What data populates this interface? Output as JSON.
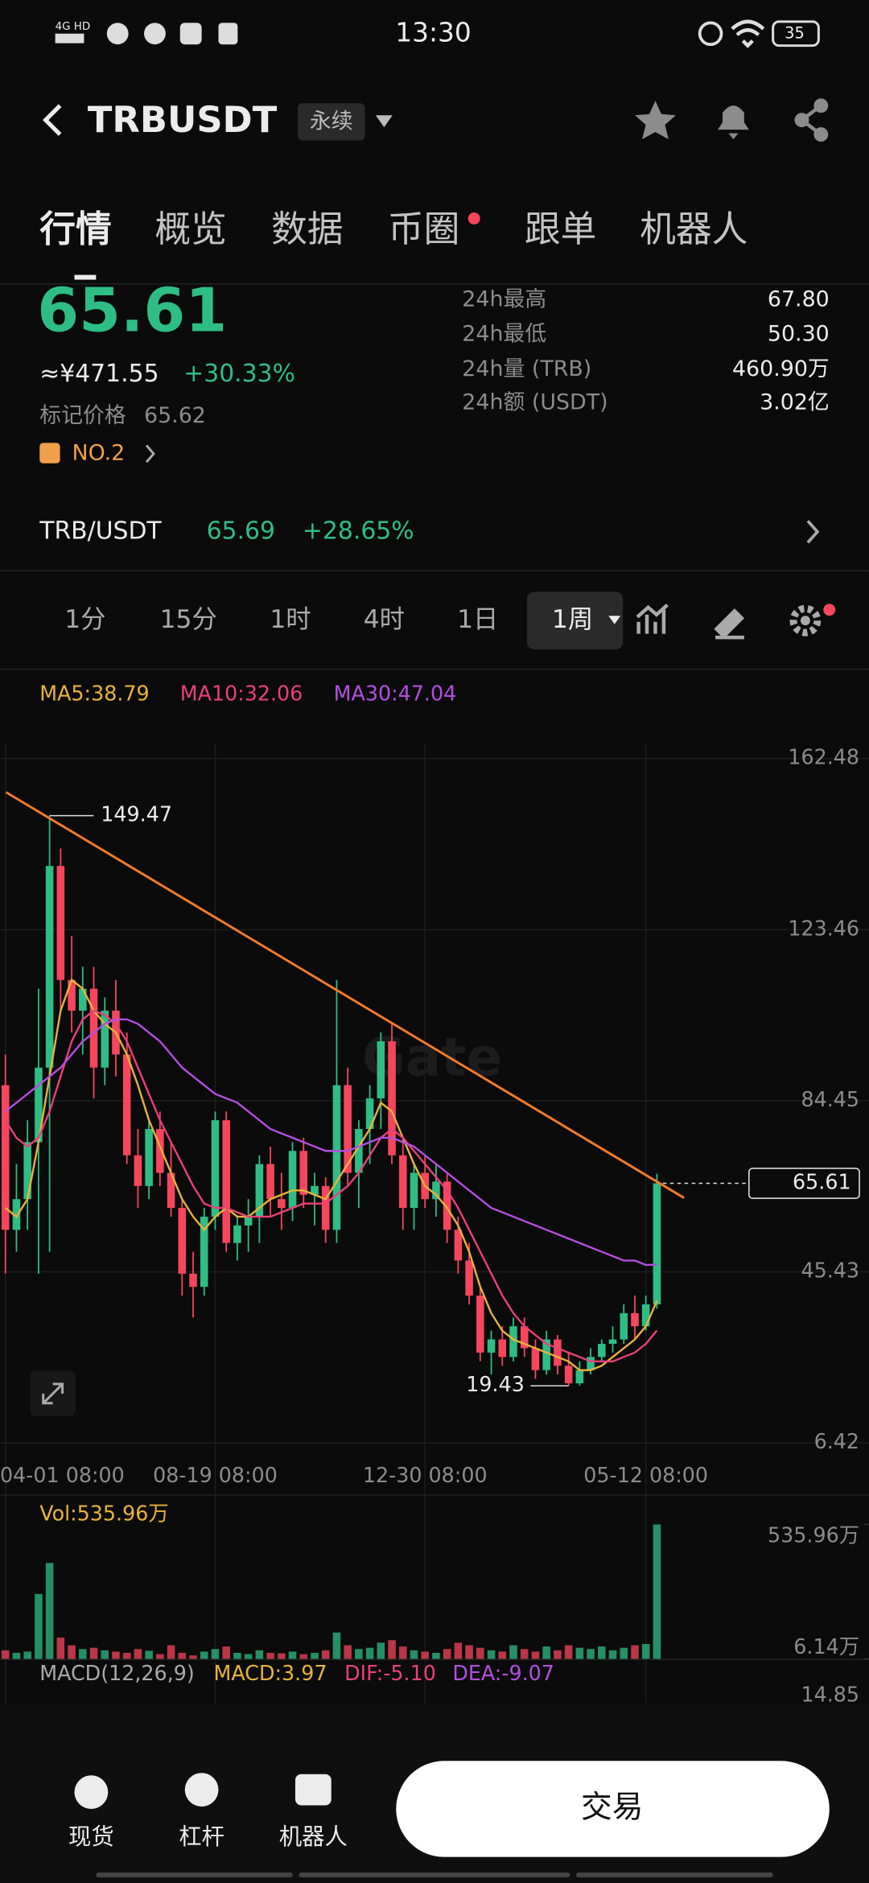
{
  "status_bar": {
    "time": "13:30",
    "battery": "35"
  },
  "header": {
    "symbol": "TRBUSDT",
    "badge": "永续"
  },
  "tabs": [
    "行情",
    "概览",
    "数据",
    "币圈",
    "跟单",
    "机器人"
  ],
  "price": {
    "last": "65.61",
    "cny": "≈¥471.55",
    "change": "+30.33%",
    "mark_label": "标记价格",
    "mark_price": "65.62",
    "rank": "NO.2"
  },
  "stats": [
    {
      "label": "24h最高",
      "value": "67.80"
    },
    {
      "label": "24h最低",
      "value": "50.30"
    },
    {
      "label": "24h量 (TRB)",
      "value": "460.90万"
    },
    {
      "label": "24h额 (USDT)",
      "value": "3.02亿"
    }
  ],
  "spot": {
    "pair": "TRB/USDT",
    "price": "65.69",
    "change": "+28.65%"
  },
  "intervals": [
    "1分",
    "15分",
    "1时",
    "4时",
    "1日",
    "1周"
  ],
  "chart_data": {
    "type": "candlestick",
    "watermark": "Gate",
    "categories": [
      "04-01 08:00",
      null,
      null,
      null,
      null,
      null,
      null,
      null,
      null,
      null,
      null,
      null,
      null,
      null,
      null,
      null,
      null,
      null,
      null,
      "08-19 08:00",
      null,
      null,
      null,
      null,
      null,
      null,
      null,
      null,
      null,
      null,
      null,
      null,
      null,
      null,
      null,
      null,
      null,
      null,
      "12-30 08:00",
      null,
      null,
      null,
      null,
      null,
      null,
      null,
      null,
      null,
      null,
      null,
      null,
      null,
      null,
      null,
      null,
      null,
      null,
      null,
      "05-12 08:00",
      null
    ],
    "open": [
      88,
      55,
      62,
      75,
      92,
      138,
      112,
      105,
      110,
      92,
      105,
      95,
      72,
      65,
      78,
      68,
      60,
      45,
      42,
      58,
      80,
      52,
      56,
      58,
      70,
      62,
      60,
      73,
      63,
      65,
      55,
      88,
      68,
      78,
      85,
      98,
      72,
      60,
      68,
      62,
      66,
      55,
      48,
      40,
      27,
      30,
      26,
      33,
      28,
      23,
      30,
      24,
      20,
      23,
      26,
      29,
      30,
      36,
      33,
      38
    ],
    "high": [
      95,
      70,
      80,
      110,
      149.47,
      142,
      122,
      115,
      115,
      108,
      112,
      100,
      78,
      80,
      82,
      75,
      62,
      50,
      60,
      82,
      82,
      58,
      62,
      72,
      74,
      68,
      75,
      76,
      68,
      67,
      112,
      92,
      80,
      88,
      100,
      102,
      76,
      70,
      72,
      70,
      68,
      58,
      52,
      42,
      32,
      33,
      35,
      35,
      30,
      32,
      31,
      27,
      25,
      28,
      30,
      33,
      38,
      40,
      40,
      67.8
    ],
    "low": [
      45,
      50,
      55,
      45,
      50,
      105,
      100,
      95,
      85,
      88,
      90,
      70,
      60,
      62,
      65,
      58,
      40,
      35,
      40,
      55,
      50,
      48,
      50,
      52,
      58,
      55,
      57,
      60,
      56,
      52,
      52,
      65,
      60,
      70,
      78,
      70,
      55,
      55,
      60,
      58,
      52,
      45,
      38,
      25,
      22,
      24,
      25,
      26,
      21,
      22,
      22,
      19.43,
      19.5,
      22,
      25,
      27,
      29,
      30,
      32,
      37
    ],
    "close": [
      55,
      62,
      75,
      92,
      138,
      112,
      105,
      110,
      92,
      105,
      95,
      72,
      65,
      78,
      68,
      60,
      45,
      42,
      58,
      80,
      52,
      56,
      58,
      70,
      62,
      60,
      73,
      63,
      65,
      55,
      88,
      68,
      78,
      85,
      98,
      72,
      60,
      68,
      62,
      66,
      55,
      48,
      40,
      27,
      30,
      26,
      33,
      28,
      23,
      30,
      24,
      20,
      23,
      26,
      29,
      30,
      36,
      33,
      38,
      65.61
    ],
    "up_color": "#2ebd85",
    "down_color": "#f6465d",
    "ylim": [
      6.42,
      162.48
    ],
    "yticks": [
      6.42,
      45.43,
      84.45,
      123.46,
      162.48
    ],
    "high_label": "149.47",
    "low_label": "19.43",
    "last_label": "65.61",
    "series": [
      {
        "name": "MA5",
        "label": "MA5:38.79",
        "color": "#e8b33a",
        "values": [
          60,
          58,
          62,
          75,
          90,
          105,
          112,
          110,
          105,
          102,
          100,
          95,
          88,
          80,
          74,
          68,
          62,
          58,
          55,
          58,
          60,
          58,
          58,
          60,
          62,
          63,
          64,
          64,
          63,
          62,
          66,
          70,
          74,
          78,
          84,
          82,
          76,
          70,
          65,
          63,
          60,
          56,
          50,
          42,
          36,
          32,
          30,
          29,
          28,
          27,
          26,
          25,
          23,
          23,
          24,
          26,
          28,
          30,
          33,
          38.79
        ]
      },
      {
        "name": "MA10",
        "label": "MA10:32.06",
        "color": "#e8407a",
        "values": [
          80,
          76,
          74,
          76,
          82,
          90,
          98,
          103,
          105,
          104,
          102,
          98,
          92,
          86,
          80,
          75,
          70,
          65,
          61,
          60,
          60,
          59,
          58,
          58,
          58,
          59,
          60,
          61,
          61,
          61,
          63,
          65,
          68,
          72,
          76,
          78,
          76,
          73,
          70,
          67,
          64,
          60,
          55,
          50,
          45,
          40,
          36,
          33,
          31,
          29,
          28,
          27,
          26,
          25,
          25,
          25,
          26,
          27,
          29,
          32.06
        ]
      },
      {
        "name": "MA30",
        "label": "MA30:47.04",
        "color": "#b44ee0",
        "values": [
          82,
          84,
          86,
          88,
          90,
          92,
          95,
          98,
          100,
          102,
          103,
          103,
          102,
          100,
          98,
          95,
          92,
          90,
          88,
          86,
          85,
          84,
          82,
          80,
          78,
          77,
          76,
          75,
          74,
          73,
          73,
          73,
          74,
          75,
          76,
          76,
          75,
          74,
          72,
          70,
          68,
          66,
          64,
          62,
          60,
          59,
          58,
          57,
          56,
          55,
          54,
          53,
          52,
          51,
          50,
          49,
          48,
          48,
          47,
          47.04
        ]
      }
    ],
    "volume": {
      "label": "Vol:535.96万",
      "values": [
        40,
        30,
        35,
        262,
        384,
        90,
        60,
        45,
        50,
        40,
        35,
        30,
        45,
        38,
        25,
        60,
        30,
        20,
        35,
        45,
        55,
        30,
        25,
        40,
        30,
        28,
        35,
        25,
        30,
        40,
        110,
        60,
        45,
        50,
        70,
        80,
        55,
        40,
        35,
        30,
        45,
        70,
        60,
        50,
        40,
        35,
        60,
        45,
        35,
        55,
        40,
        60,
        50,
        45,
        55,
        40,
        50,
        60,
        65,
        535.96
      ],
      "ylim": [
        6.14,
        535.96
      ],
      "yticks": [
        {
          "value": 6.14,
          "label": "6.14万"
        },
        {
          "value": 535.96,
          "label": "535.96万"
        }
      ]
    },
    "macd": {
      "title": "MACD(12,26,9)",
      "macd": "MACD:3.97",
      "dif": "DIF:-5.10",
      "dea": "DEA:-9.07",
      "top_tick": "14.85"
    }
  },
  "bottom_nav": {
    "items": [
      "现货",
      "杠杆",
      "机器人"
    ],
    "trade": "交易"
  }
}
